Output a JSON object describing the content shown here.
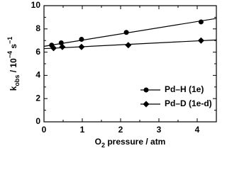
{
  "chart_data": {
    "type": "scatter",
    "x_label": [
      {
        "text": "O"
      },
      {
        "text": "2",
        "shift": "sub"
      },
      {
        "text": " pressure / atm"
      }
    ],
    "y_label": [
      {
        "text": "k"
      },
      {
        "text": "obs",
        "shift": "sub"
      },
      {
        "text": " / 10"
      },
      {
        "text": "−4",
        "shift": "super"
      },
      {
        "text": " s"
      },
      {
        "text": "−1",
        "shift": "super"
      }
    ],
    "xlim": [
      0,
      4.5
    ],
    "xticks": [
      0,
      1,
      2,
      3,
      4
    ],
    "xticks_minor": [
      0.5,
      1.5,
      2.5,
      3.5
    ],
    "ylim": [
      0,
      10
    ],
    "yticks": [
      0,
      2,
      4,
      6,
      8,
      10
    ],
    "yticks_minor": [
      1,
      3,
      5,
      7,
      9
    ],
    "legend": "lower right",
    "series": [
      {
        "name": "Pd–H (1e)",
        "marker": "circle",
        "color": "#000000",
        "x": [
          0.2,
          0.45,
          0.98,
          2.15,
          4.1
        ],
        "values": [
          6.6,
          6.8,
          7.1,
          7.7,
          8.6
        ],
        "fit": {
          "x": [
            0,
            4.5
          ],
          "values": [
            6.5,
            8.9
          ]
        }
      },
      {
        "name": "Pd–D (1e-d)",
        "marker": "diamond",
        "color": "#000000",
        "x": [
          0.25,
          0.48,
          0.98,
          2.2,
          4.1
        ],
        "values": [
          6.35,
          6.45,
          6.45,
          6.6,
          7.0
        ],
        "fit": {
          "x": [
            0,
            4.5
          ],
          "values": [
            6.3,
            7.05
          ]
        }
      }
    ]
  }
}
